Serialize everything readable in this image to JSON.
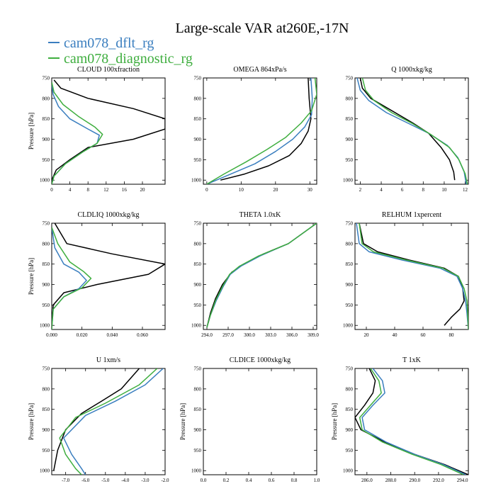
{
  "figure": {
    "title": "Large-scale VAR at260E,-17N",
    "legend": [
      {
        "label": "cam078_dflt_rg",
        "color": "#3a7ebf"
      },
      {
        "label": "cam078_diagnostic_rg",
        "color": "#3fae3f"
      }
    ],
    "reference_color": "#000000",
    "ylabel": "Pressure [hPa]"
  },
  "chart_data": [
    {
      "type": "line",
      "title": "CLOUD 100xfraction",
      "xlim": [
        0,
        25
      ],
      "xticks": [
        "0",
        "4",
        "8",
        "12",
        "16",
        "20"
      ],
      "xtick_values": [
        0,
        4,
        8,
        12,
        16,
        20
      ],
      "ylim": [
        750,
        1010
      ],
      "yticks": [
        "750",
        "800",
        "850",
        "900",
        "950",
        "1000"
      ],
      "ytick_values": [
        750,
        800,
        850,
        900,
        950,
        1000
      ],
      "ylabel": "Pressure [hPa]",
      "series": [
        {
          "color": "#000000",
          "x": [
            0.5,
            2,
            8,
            18,
            25,
            25,
            18,
            8,
            4,
            1,
            0
          ],
          "y": [
            755,
            775,
            800,
            825,
            850,
            875,
            900,
            920,
            950,
            975,
            1000
          ]
        },
        {
          "color": "#3a7ebf",
          "x": [
            0,
            0.3,
            1.5,
            4,
            8,
            10.5,
            10,
            7,
            3,
            0.5,
            0
          ],
          "y": [
            760,
            790,
            820,
            850,
            875,
            890,
            910,
            930,
            960,
            990,
            1010
          ]
        },
        {
          "color": "#3fae3f",
          "x": [
            0,
            0.5,
            2.5,
            6,
            9.5,
            11.2,
            10,
            7,
            3,
            0.5,
            0
          ],
          "y": [
            760,
            785,
            815,
            845,
            870,
            888,
            910,
            930,
            960,
            990,
            1010
          ]
        }
      ]
    },
    {
      "type": "line",
      "title": "OMEGA 864xPa/s",
      "xlim": [
        -1,
        32
      ],
      "xticks": [
        "0",
        "10",
        "20",
        "30"
      ],
      "xtick_values": [
        0,
        10,
        20,
        30
      ],
      "ylim": [
        750,
        1010
      ],
      "yticks": [
        "750",
        "800",
        "850",
        "900",
        "950",
        "1000"
      ],
      "ytick_values": [
        750,
        800,
        850,
        900,
        950,
        1000
      ],
      "ylabel": "",
      "series": [
        {
          "color": "#000000",
          "x": [
            29.5,
            29.8,
            30.3,
            29.5,
            27.5,
            24,
            18,
            11,
            4
          ],
          "y": [
            750,
            800,
            850,
            880,
            910,
            940,
            965,
            985,
            1000
          ]
        },
        {
          "color": "#3a7ebf",
          "x": [
            30.3,
            30.7,
            30.5,
            28.5,
            25,
            20,
            14,
            7,
            0
          ],
          "y": [
            750,
            800,
            840,
            870,
            900,
            930,
            960,
            985,
            1010
          ]
        },
        {
          "color": "#3fae3f",
          "x": [
            31.5,
            32,
            30.5,
            27.5,
            23,
            17.5,
            11.5,
            5,
            0
          ],
          "y": [
            750,
            790,
            830,
            860,
            895,
            925,
            955,
            985,
            1010
          ]
        }
      ]
    },
    {
      "type": "line",
      "title": "Q 1000xkg/kg",
      "xlim": [
        1.5,
        12.3
      ],
      "xticks": [
        "2",
        "4",
        "6",
        "8",
        "10",
        "12"
      ],
      "xtick_values": [
        2,
        4,
        6,
        8,
        10,
        12
      ],
      "ylim": [
        750,
        1010
      ],
      "yticks": [
        "750",
        "800",
        "850",
        "900",
        "950",
        "1000"
      ],
      "ytick_values": [
        750,
        800,
        850,
        900,
        950,
        1000
      ],
      "ylabel": "",
      "series": [
        {
          "color": "#000000",
          "x": [
            2,
            2.2,
            3,
            5,
            7,
            8.5,
            9.7,
            10.5,
            10.9,
            11
          ],
          "y": [
            750,
            775,
            800,
            830,
            860,
            885,
            920,
            950,
            980,
            1000
          ]
        },
        {
          "color": "#3a7ebf",
          "x": [
            1.7,
            2,
            2.8,
            4.5,
            6.5,
            8.5,
            10.3,
            11.3,
            11.9,
            12.1
          ],
          "y": [
            750,
            780,
            805,
            835,
            860,
            885,
            915,
            945,
            980,
            1010
          ]
        },
        {
          "color": "#3fae3f",
          "x": [
            2.2,
            2.5,
            3.3,
            5,
            7,
            8.7,
            10.5,
            11.4,
            12,
            12.2
          ],
          "y": [
            750,
            780,
            805,
            835,
            862,
            888,
            920,
            950,
            985,
            1010
          ]
        }
      ]
    },
    {
      "type": "line",
      "title": "CLDLIQ 1000xkg/kg",
      "xlim": [
        0,
        0.075
      ],
      "xticks": [
        "0.000",
        "0.020",
        "0.040",
        "0.060"
      ],
      "xtick_values": [
        0.0,
        0.02,
        0.04,
        0.06
      ],
      "ylim": [
        750,
        1010
      ],
      "yticks": [
        "750",
        "800",
        "850",
        "900",
        "950",
        "1000"
      ],
      "ytick_values": [
        750,
        800,
        850,
        900,
        950,
        1000
      ],
      "ylabel": "Pressure [hPa]",
      "series": [
        {
          "color": "#000000",
          "x": [
            0.002,
            0.01,
            0.04,
            0.075,
            0.064,
            0.03,
            0.008,
            0.001,
            0
          ],
          "y": [
            750,
            800,
            825,
            850,
            875,
            900,
            920,
            950,
            1000
          ]
        },
        {
          "color": "#3a7ebf",
          "x": [
            0,
            0.002,
            0.008,
            0.018,
            0.023,
            0.018,
            0.008,
            0.001,
            0
          ],
          "y": [
            760,
            810,
            850,
            870,
            890,
            910,
            930,
            960,
            1010
          ]
        },
        {
          "color": "#3fae3f",
          "x": [
            0,
            0.004,
            0.012,
            0.021,
            0.026,
            0.02,
            0.008,
            0.001,
            0
          ],
          "y": [
            760,
            800,
            845,
            868,
            885,
            908,
            930,
            960,
            1010
          ]
        }
      ]
    },
    {
      "type": "line",
      "title": "THETA 1.0xK",
      "xlim": [
        293.5,
        309.5
      ],
      "xticks": [
        "294.0",
        "297.0",
        "300.0",
        "303.0",
        "306.0",
        "309.0"
      ],
      "xtick_values": [
        294,
        297,
        300,
        303,
        306,
        309
      ],
      "ylim": [
        750,
        1010
      ],
      "yticks": [
        "750",
        "800",
        "850",
        "900",
        "950",
        "1000"
      ],
      "ytick_values": [
        750,
        800,
        850,
        900,
        950,
        1000
      ],
      "ylabel": "",
      "series": [
        {
          "color": "#000000",
          "x": [
            309.5,
            305.5,
            302,
            299.2,
            297.5,
            296.2,
            295.2,
            294.5,
            294
          ],
          "y": [
            750,
            800,
            825,
            850,
            870,
            900,
            935,
            970,
            1005
          ]
        },
        {
          "color": "#3a7ebf",
          "x": [
            309.5,
            305.5,
            301.5,
            298.8,
            297.3,
            296.3,
            295.3,
            294.5,
            294
          ],
          "y": [
            750,
            800,
            830,
            855,
            875,
            905,
            940,
            975,
            1005
          ]
        },
        {
          "color": "#3fae3f",
          "x": [
            309.5,
            305.5,
            301.3,
            298.6,
            297.2,
            296.2,
            295.2,
            294.5,
            294
          ],
          "y": [
            750,
            800,
            830,
            855,
            875,
            905,
            940,
            975,
            1005
          ]
        }
      ]
    },
    {
      "type": "line",
      "title": "RELHUM 1xpercent",
      "xlim": [
        12,
        92
      ],
      "xticks": [
        "20",
        "40",
        "60",
        "80"
      ],
      "xtick_values": [
        20,
        40,
        60,
        80
      ],
      "ylim": [
        750,
        1010
      ],
      "yticks": [
        "750",
        "800",
        "850",
        "900",
        "950",
        "1000"
      ],
      "ytick_values": [
        750,
        800,
        850,
        900,
        950,
        1000
      ],
      "ylabel": "",
      "series": [
        {
          "color": "#000000",
          "x": [
            15,
            18,
            28,
            50,
            75,
            85,
            88,
            89,
            86,
            80,
            75
          ],
          "y": [
            750,
            800,
            820,
            840,
            860,
            880,
            910,
            940,
            960,
            980,
            1000
          ]
        },
        {
          "color": "#3a7ebf",
          "x": [
            13,
            15,
            22,
            45,
            72,
            84,
            88,
            90,
            91,
            92
          ],
          "y": [
            750,
            800,
            820,
            840,
            860,
            880,
            910,
            940,
            970,
            1010
          ]
        },
        {
          "color": "#3fae3f",
          "x": [
            15,
            17,
            25,
            48,
            74,
            85,
            89,
            91,
            91.5,
            92
          ],
          "y": [
            750,
            800,
            820,
            840,
            860,
            880,
            910,
            940,
            970,
            1010
          ]
        }
      ]
    },
    {
      "type": "line",
      "title": "U 1xm/s",
      "xlim": [
        -7.7,
        -2
      ],
      "xticks": [
        "-7.0",
        "-6.0",
        "-5.0",
        "-4.0",
        "-3.0",
        "-2.0"
      ],
      "xtick_values": [
        -7,
        -6,
        -5,
        -4,
        -3,
        -2
      ],
      "ylim": [
        750,
        1010
      ],
      "yticks": [
        "750",
        "800",
        "850",
        "900",
        "950",
        "1000"
      ],
      "ytick_values": [
        750,
        800,
        850,
        900,
        950,
        1000
      ],
      "ylabel": "Pressure [hPa]",
      "series": [
        {
          "color": "#000000",
          "x": [
            -3.3,
            -4.2,
            -5.2,
            -6.2,
            -7.0,
            -7.4,
            -7.6
          ],
          "y": [
            750,
            800,
            830,
            860,
            900,
            950,
            1000
          ]
        },
        {
          "color": "#3a7ebf",
          "x": [
            -2.1,
            -3,
            -4.5,
            -6,
            -7.1,
            -6.7,
            -6.2,
            -6
          ],
          "y": [
            750,
            790,
            830,
            865,
            920,
            960,
            995,
            1010
          ]
        },
        {
          "color": "#3fae3f",
          "x": [
            -2.4,
            -3.3,
            -5,
            -6.5,
            -7.3,
            -7,
            -6.5,
            -6.2
          ],
          "y": [
            750,
            790,
            835,
            870,
            920,
            960,
            995,
            1010
          ]
        }
      ]
    },
    {
      "type": "line",
      "title": "CLDICE 1000xkg/kg",
      "xlim": [
        0,
        1
      ],
      "xticks": [
        "0.0",
        "0.2",
        "0.4",
        "0.6",
        "0.8",
        "1.0"
      ],
      "xtick_values": [
        0,
        0.2,
        0.4,
        0.6,
        0.8,
        1.0
      ],
      "ylim": [
        750,
        1010
      ],
      "yticks": [
        "750",
        "800",
        "850",
        "900",
        "950",
        "1000"
      ],
      "ytick_values": [
        750,
        800,
        850,
        900,
        950,
        1000
      ],
      "ylabel": "Pressure [hPa]",
      "series": []
    },
    {
      "type": "line",
      "title": "T 1xK",
      "xlim": [
        285,
        294.5
      ],
      "xticks": [
        "286.0",
        "288.0",
        "290.0",
        "292.0",
        "294.0"
      ],
      "xtick_values": [
        286,
        288,
        290,
        292,
        294
      ],
      "ylim": [
        750,
        1010
      ],
      "yticks": [
        "750",
        "800",
        "850",
        "900",
        "950",
        "1000"
      ],
      "ytick_values": [
        750,
        800,
        850,
        900,
        950,
        1000
      ],
      "ylabel": "Pressure [hPa]",
      "series": [
        {
          "color": "#000000",
          "x": [
            286.2,
            286.7,
            286.5,
            285.8,
            285,
            285.5,
            287.5,
            290,
            292.5,
            294.5
          ],
          "y": [
            750,
            780,
            810,
            840,
            870,
            900,
            930,
            960,
            985,
            1010
          ]
        },
        {
          "color": "#3a7ebf",
          "x": [
            286.5,
            287.3,
            287.5,
            286.5,
            285.6,
            285.8,
            287.6,
            290,
            292.4,
            294.3
          ],
          "y": [
            750,
            780,
            810,
            840,
            870,
            900,
            930,
            960,
            985,
            1010
          ]
        },
        {
          "color": "#3fae3f",
          "x": [
            286.3,
            287,
            287.2,
            286.3,
            285.4,
            285.6,
            287.3,
            289.8,
            292.2,
            294.1
          ],
          "y": [
            750,
            780,
            810,
            840,
            870,
            900,
            930,
            960,
            985,
            1010
          ]
        }
      ]
    }
  ]
}
